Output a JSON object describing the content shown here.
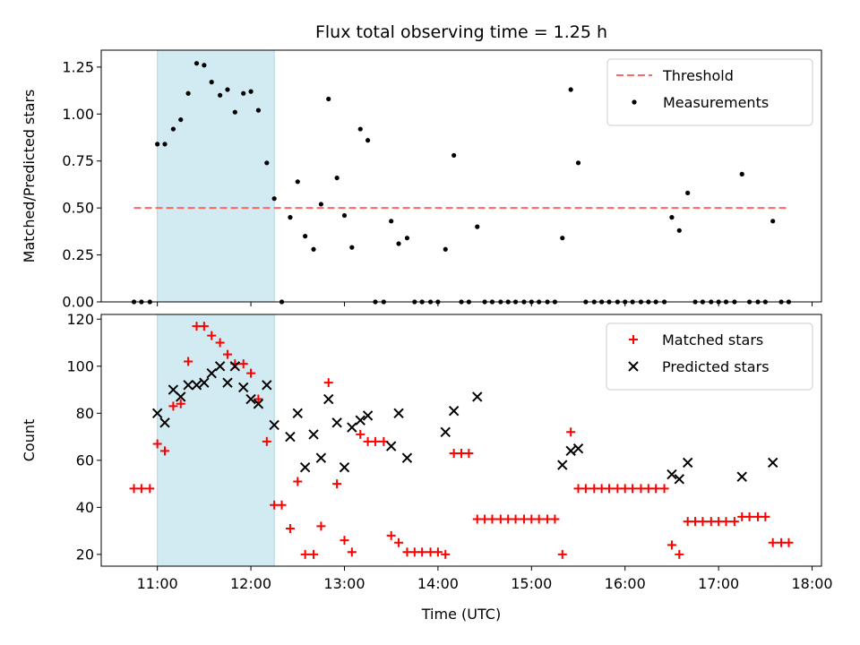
{
  "chart_data": [
    {
      "type": "scatter",
      "title": "Flux total observing time = 1.25 h",
      "xlabel": "",
      "ylabel": "Matched/Predicted stars",
      "x_unit": "hour (UTC)",
      "xlim": [
        10.4,
        18.1
      ],
      "ylim": [
        0,
        1.34
      ],
      "yticks": [
        0.0,
        0.25,
        0.5,
        0.75,
        1.0,
        1.25
      ],
      "ytick_labels": [
        "0.00",
        "0.25",
        "0.50",
        "0.75",
        "1.00",
        "1.25"
      ],
      "shaded_interval": [
        11.0,
        12.25
      ],
      "shade_color": "#add8e6",
      "threshold": {
        "name": "Threshold",
        "y": 0.5,
        "x_range": [
          10.75,
          17.75
        ],
        "color": "#ff6666"
      },
      "series": [
        {
          "name": "Measurements",
          "color": "#000000",
          "points": [
            [
              10.75,
              0
            ],
            [
              10.83,
              0
            ],
            [
              10.92,
              0
            ],
            [
              11.0,
              0.84
            ],
            [
              11.08,
              0.84
            ],
            [
              11.17,
              0.92
            ],
            [
              11.25,
              0.97
            ],
            [
              11.33,
              1.11
            ],
            [
              11.42,
              1.27
            ],
            [
              11.5,
              1.26
            ],
            [
              11.58,
              1.17
            ],
            [
              11.67,
              1.1
            ],
            [
              11.75,
              1.13
            ],
            [
              11.83,
              1.01
            ],
            [
              11.92,
              1.11
            ],
            [
              12.0,
              1.12
            ],
            [
              12.08,
              1.02
            ],
            [
              12.17,
              0.74
            ],
            [
              12.25,
              0.55
            ],
            [
              12.33,
              0
            ],
            [
              12.42,
              0.45
            ],
            [
              12.5,
              0.64
            ],
            [
              12.58,
              0.35
            ],
            [
              12.67,
              0.28
            ],
            [
              12.75,
              0.52
            ],
            [
              12.83,
              1.08
            ],
            [
              12.92,
              0.66
            ],
            [
              13.0,
              0.46
            ],
            [
              13.08,
              0.29
            ],
            [
              13.17,
              0.92
            ],
            [
              13.25,
              0.86
            ],
            [
              13.33,
              0
            ],
            [
              13.42,
              0
            ],
            [
              13.5,
              0.43
            ],
            [
              13.58,
              0.31
            ],
            [
              13.67,
              0.34
            ],
            [
              13.75,
              0
            ],
            [
              13.83,
              0
            ],
            [
              13.92,
              0
            ],
            [
              14.0,
              0
            ],
            [
              14.08,
              0.28
            ],
            [
              14.17,
              0.78
            ],
            [
              14.25,
              0
            ],
            [
              14.33,
              0
            ],
            [
              14.42,
              0.4
            ],
            [
              14.5,
              0
            ],
            [
              14.58,
              0
            ],
            [
              14.67,
              0
            ],
            [
              14.75,
              0
            ],
            [
              14.83,
              0
            ],
            [
              14.92,
              0
            ],
            [
              15.0,
              0
            ],
            [
              15.08,
              0
            ],
            [
              15.17,
              0
            ],
            [
              15.25,
              0
            ],
            [
              15.33,
              0.34
            ],
            [
              15.42,
              1.13
            ],
            [
              15.5,
              0.74
            ],
            [
              15.58,
              0
            ],
            [
              15.67,
              0
            ],
            [
              15.75,
              0
            ],
            [
              15.83,
              0
            ],
            [
              15.92,
              0
            ],
            [
              16.0,
              0
            ],
            [
              16.08,
              0
            ],
            [
              16.17,
              0
            ],
            [
              16.25,
              0
            ],
            [
              16.33,
              0
            ],
            [
              16.42,
              0
            ],
            [
              16.5,
              0.45
            ],
            [
              16.58,
              0.38
            ],
            [
              16.67,
              0.58
            ],
            [
              16.75,
              0
            ],
            [
              16.83,
              0
            ],
            [
              16.92,
              0
            ],
            [
              17.0,
              0
            ],
            [
              17.08,
              0
            ],
            [
              17.17,
              0
            ],
            [
              17.25,
              0.68
            ],
            [
              17.33,
              0
            ],
            [
              17.42,
              0
            ],
            [
              17.5,
              0
            ],
            [
              17.58,
              0.43
            ],
            [
              17.67,
              0
            ],
            [
              17.75,
              0
            ]
          ]
        }
      ],
      "legend": {
        "position": "top-right"
      }
    },
    {
      "type": "scatter",
      "title": "",
      "xlabel": "Time (UTC)",
      "ylabel": "Count",
      "x_unit": "hour (UTC)",
      "xlim": [
        10.4,
        18.1
      ],
      "ylim": [
        15,
        122
      ],
      "yticks": [
        20,
        40,
        60,
        80,
        100,
        120
      ],
      "ytick_labels": [
        "20",
        "40",
        "60",
        "80",
        "100",
        "120"
      ],
      "xticks": [
        11,
        12,
        13,
        14,
        15,
        16,
        17,
        18
      ],
      "xtick_labels": [
        "11:00",
        "12:00",
        "13:00",
        "14:00",
        "15:00",
        "16:00",
        "17:00",
        "18:00"
      ],
      "shaded_interval": [
        11.0,
        12.25
      ],
      "shade_color": "#add8e6",
      "series": [
        {
          "name": "Matched stars",
          "marker": "plus",
          "color": "#ff0000",
          "points": [
            [
              10.75,
              48
            ],
            [
              10.83,
              48
            ],
            [
              10.92,
              48
            ],
            [
              11.0,
              67
            ],
            [
              11.08,
              64
            ],
            [
              11.17,
              83
            ],
            [
              11.25,
              84
            ],
            [
              11.33,
              102
            ],
            [
              11.42,
              117
            ],
            [
              11.5,
              117
            ],
            [
              11.58,
              113
            ],
            [
              11.67,
              110
            ],
            [
              11.75,
              105
            ],
            [
              11.83,
              101
            ],
            [
              11.92,
              101
            ],
            [
              12.0,
              97
            ],
            [
              12.08,
              86
            ],
            [
              12.17,
              68
            ],
            [
              12.25,
              41
            ],
            [
              12.33,
              41
            ],
            [
              12.42,
              31
            ],
            [
              12.5,
              51
            ],
            [
              12.58,
              20
            ],
            [
              12.67,
              20
            ],
            [
              12.75,
              32
            ],
            [
              12.83,
              93
            ],
            [
              12.92,
              50
            ],
            [
              13.0,
              26
            ],
            [
              13.08,
              21
            ],
            [
              13.17,
              71
            ],
            [
              13.25,
              68
            ],
            [
              13.33,
              68
            ],
            [
              13.42,
              68
            ],
            [
              13.5,
              28
            ],
            [
              13.58,
              25
            ],
            [
              13.67,
              21
            ],
            [
              13.75,
              21
            ],
            [
              13.83,
              21
            ],
            [
              13.92,
              21
            ],
            [
              14.0,
              21
            ],
            [
              14.08,
              20
            ],
            [
              14.17,
              63
            ],
            [
              14.25,
              63
            ],
            [
              14.33,
              63
            ],
            [
              14.42,
              35
            ],
            [
              14.5,
              35
            ],
            [
              14.58,
              35
            ],
            [
              14.67,
              35
            ],
            [
              14.75,
              35
            ],
            [
              14.83,
              35
            ],
            [
              14.92,
              35
            ],
            [
              15.0,
              35
            ],
            [
              15.08,
              35
            ],
            [
              15.17,
              35
            ],
            [
              15.25,
              35
            ],
            [
              15.33,
              20
            ],
            [
              15.42,
              72
            ],
            [
              15.5,
              48
            ],
            [
              15.58,
              48
            ],
            [
              15.67,
              48
            ],
            [
              15.75,
              48
            ],
            [
              15.83,
              48
            ],
            [
              15.92,
              48
            ],
            [
              16.0,
              48
            ],
            [
              16.08,
              48
            ],
            [
              16.17,
              48
            ],
            [
              16.25,
              48
            ],
            [
              16.33,
              48
            ],
            [
              16.42,
              48
            ],
            [
              16.5,
              24
            ],
            [
              16.58,
              20
            ],
            [
              16.67,
              34
            ],
            [
              16.75,
              34
            ],
            [
              16.83,
              34
            ],
            [
              16.92,
              34
            ],
            [
              17.0,
              34
            ],
            [
              17.08,
              34
            ],
            [
              17.17,
              34
            ],
            [
              17.25,
              36
            ],
            [
              17.33,
              36
            ],
            [
              17.42,
              36
            ],
            [
              17.5,
              36
            ],
            [
              17.58,
              25
            ],
            [
              17.67,
              25
            ],
            [
              17.75,
              25
            ]
          ]
        },
        {
          "name": "Predicted stars",
          "marker": "x",
          "color": "#000000",
          "points": [
            [
              11.0,
              80
            ],
            [
              11.08,
              76
            ],
            [
              11.17,
              90
            ],
            [
              11.25,
              87
            ],
            [
              11.33,
              92
            ],
            [
              11.42,
              92
            ],
            [
              11.5,
              93
            ],
            [
              11.58,
              97
            ],
            [
              11.67,
              100
            ],
            [
              11.75,
              93
            ],
            [
              11.83,
              100
            ],
            [
              11.92,
              91
            ],
            [
              12.0,
              86
            ],
            [
              12.08,
              84
            ],
            [
              12.17,
              92
            ],
            [
              12.25,
              75
            ],
            [
              12.42,
              70
            ],
            [
              12.5,
              80
            ],
            [
              12.58,
              57
            ],
            [
              12.67,
              71
            ],
            [
              12.75,
              61
            ],
            [
              12.83,
              86
            ],
            [
              12.92,
              76
            ],
            [
              13.0,
              57
            ],
            [
              13.08,
              74
            ],
            [
              13.17,
              77
            ],
            [
              13.25,
              79
            ],
            [
              13.5,
              66
            ],
            [
              13.58,
              80
            ],
            [
              13.67,
              61
            ],
            [
              14.08,
              72
            ],
            [
              14.17,
              81
            ],
            [
              14.42,
              87
            ],
            [
              15.33,
              58
            ],
            [
              15.42,
              64
            ],
            [
              15.5,
              65
            ],
            [
              16.5,
              54
            ],
            [
              16.58,
              52
            ],
            [
              16.67,
              59
            ],
            [
              17.25,
              53
            ],
            [
              17.58,
              59
            ]
          ]
        }
      ],
      "legend": {
        "position": "top-right"
      }
    }
  ]
}
